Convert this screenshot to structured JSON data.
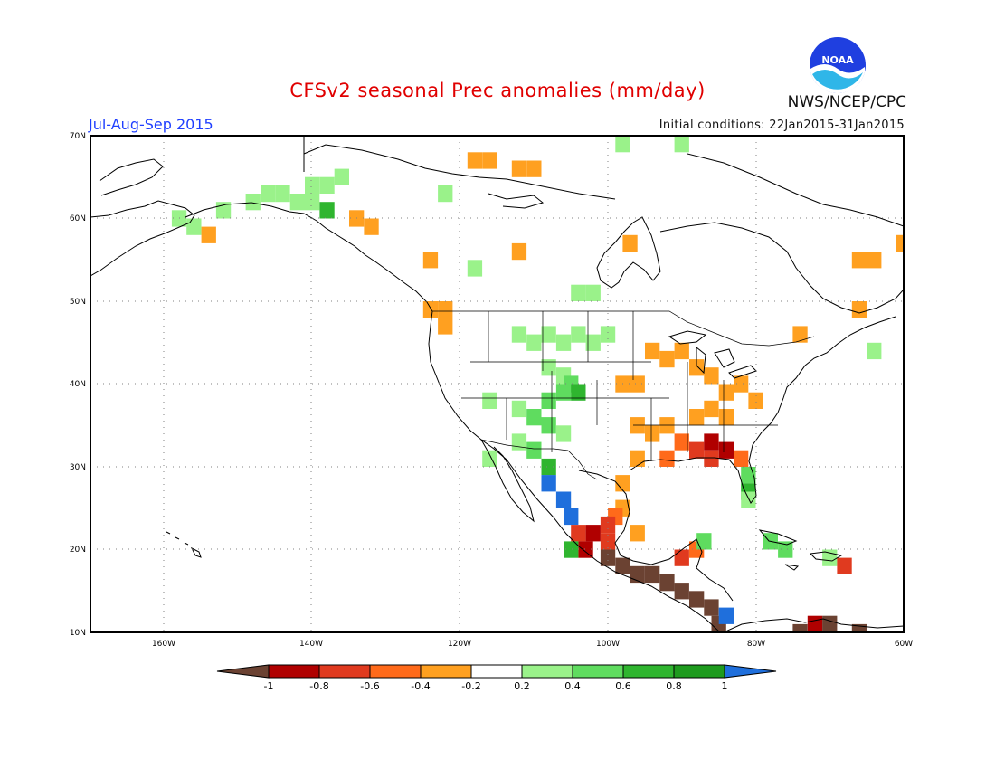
{
  "title": "CFSv2 seasonal Prec anomalies (mm/day)",
  "season": "Jul-Aug-Sep 2015",
  "initial_conditions": "Initial conditions: 22Jan2015-31Jan2015",
  "org": "NWS/NCEP/CPC",
  "logo_text": "NOAA",
  "lat_labels": [
    "70N",
    "60N",
    "50N",
    "40N",
    "30N",
    "20N",
    "10N"
  ],
  "lon_labels": [
    "160W",
    "140W",
    "120W",
    "100W",
    "80W",
    "60W"
  ],
  "legend": {
    "ticks": [
      "-1",
      "-0.8",
      "-0.6",
      "-0.4",
      "-0.2",
      "0.2",
      "0.4",
      "0.6",
      "0.8",
      "1"
    ],
    "colors": [
      "#6b4232",
      "#b00000",
      "#e03a1f",
      "#ff6a1a",
      "#ffa020",
      "#ffffff",
      "#9af28a",
      "#5fdc5f",
      "#2fb52f",
      "#1e9b1e",
      "#1f6fdc"
    ]
  },
  "colors": {
    "brown": "#6b4232",
    "darkred": "#b00000",
    "red": "#e03a1f",
    "orangered": "#ff6a1a",
    "orange": "#ffa020",
    "lightgreen": "#9af28a",
    "green": "#5fdc5f",
    "midgreen": "#2fb52f",
    "darkgreen": "#1e9b1e",
    "blue": "#1f6fdc"
  },
  "anomaly_cells": [
    {
      "c": "lightgreen",
      "lon": -152,
      "lat": 61
    },
    {
      "c": "lightgreen",
      "lon": -148,
      "lat": 62
    },
    {
      "c": "lightgreen",
      "lon": -146,
      "lat": 63
    },
    {
      "c": "lightgreen",
      "lon": -144,
      "lat": 63
    },
    {
      "c": "lightgreen",
      "lon": -142,
      "lat": 62
    },
    {
      "c": "lightgreen",
      "lon": -140,
      "lat": 62
    },
    {
      "c": "lightgreen",
      "lon": -138,
      "lat": 64
    },
    {
      "c": "lightgreen",
      "lon": -136,
      "lat": 65
    },
    {
      "c": "lightgreen",
      "lon": -140,
      "lat": 64
    },
    {
      "c": "midgreen",
      "lon": -138,
      "lat": 61
    },
    {
      "c": "lightgreen",
      "lon": -158,
      "lat": 60
    },
    {
      "c": "lightgreen",
      "lon": -156,
      "lat": 59
    },
    {
      "c": "orange",
      "lon": -134,
      "lat": 60
    },
    {
      "c": "orange",
      "lon": -132,
      "lat": 59
    },
    {
      "c": "orange",
      "lon": -154,
      "lat": 58
    },
    {
      "c": "orange",
      "lon": -118,
      "lat": 67
    },
    {
      "c": "orange",
      "lon": -116,
      "lat": 67
    },
    {
      "c": "orange",
      "lon": -112,
      "lat": 66
    },
    {
      "c": "orange",
      "lon": -110,
      "lat": 66
    },
    {
      "c": "lightgreen",
      "lon": -122,
      "lat": 63
    },
    {
      "c": "orange",
      "lon": -124,
      "lat": 55
    },
    {
      "c": "lightgreen",
      "lon": -118,
      "lat": 54
    },
    {
      "c": "lightgreen",
      "lon": -104,
      "lat": 51
    },
    {
      "c": "lightgreen",
      "lon": -102,
      "lat": 51
    },
    {
      "c": "orange",
      "lon": -112,
      "lat": 56
    },
    {
      "c": "lightgreen",
      "lon": -98,
      "lat": 69
    },
    {
      "c": "lightgreen",
      "lon": -90,
      "lat": 69
    },
    {
      "c": "orange",
      "lon": -124,
      "lat": 49
    },
    {
      "c": "orange",
      "lon": -122,
      "lat": 49
    },
    {
      "c": "orange",
      "lon": -122,
      "lat": 47
    },
    {
      "c": "orange",
      "lon": -97,
      "lat": 57
    },
    {
      "c": "orange",
      "lon": -66,
      "lat": 55
    },
    {
      "c": "orange",
      "lon": -64,
      "lat": 55
    },
    {
      "c": "orange",
      "lon": -60,
      "lat": 57
    },
    {
      "c": "lightgreen",
      "lon": -112,
      "lat": 46
    },
    {
      "c": "lightgreen",
      "lon": -110,
      "lat": 45
    },
    {
      "c": "lightgreen",
      "lon": -108,
      "lat": 46
    },
    {
      "c": "lightgreen",
      "lon": -106,
      "lat": 45
    },
    {
      "c": "lightgreen",
      "lon": -104,
      "lat": 46
    },
    {
      "c": "lightgreen",
      "lon": -102,
      "lat": 45
    },
    {
      "c": "lightgreen",
      "lon": -100,
      "lat": 46
    },
    {
      "c": "lightgreen",
      "lon": -108,
      "lat": 42
    },
    {
      "c": "lightgreen",
      "lon": -106,
      "lat": 41
    },
    {
      "c": "green",
      "lon": -105,
      "lat": 40
    },
    {
      "c": "green",
      "lon": -106,
      "lat": 39
    },
    {
      "c": "midgreen",
      "lon": -104,
      "lat": 39
    },
    {
      "c": "green",
      "lon": -108,
      "lat": 38
    },
    {
      "c": "lightgreen",
      "lon": -112,
      "lat": 37
    },
    {
      "c": "green",
      "lon": -110,
      "lat": 36
    },
    {
      "c": "green",
      "lon": -108,
      "lat": 35
    },
    {
      "c": "lightgreen",
      "lon": -106,
      "lat": 34
    },
    {
      "c": "lightgreen",
      "lon": -112,
      "lat": 33
    },
    {
      "c": "green",
      "lon": -110,
      "lat": 32
    },
    {
      "c": "midgreen",
      "lon": -108,
      "lat": 30
    },
    {
      "c": "blue",
      "lon": -108,
      "lat": 28
    },
    {
      "c": "blue",
      "lon": -106,
      "lat": 26
    },
    {
      "c": "blue",
      "lon": -105,
      "lat": 24
    },
    {
      "c": "lightgreen",
      "lon": -116,
      "lat": 31
    },
    {
      "c": "lightgreen",
      "lon": -116,
      "lat": 38
    },
    {
      "c": "orange",
      "lon": -94,
      "lat": 44
    },
    {
      "c": "orange",
      "lon": -92,
      "lat": 43
    },
    {
      "c": "orange",
      "lon": -90,
      "lat": 44
    },
    {
      "c": "orange",
      "lon": -88,
      "lat": 42
    },
    {
      "c": "orange",
      "lon": -86,
      "lat": 41
    },
    {
      "c": "orange",
      "lon": -84,
      "lat": 39
    },
    {
      "c": "orange",
      "lon": -82,
      "lat": 40
    },
    {
      "c": "orange",
      "lon": -80,
      "lat": 38
    },
    {
      "c": "orange",
      "lon": -96,
      "lat": 40
    },
    {
      "c": "orange",
      "lon": -98,
      "lat": 40
    },
    {
      "c": "orange",
      "lon": -96,
      "lat": 35
    },
    {
      "c": "orange",
      "lon": -94,
      "lat": 34
    },
    {
      "c": "orange",
      "lon": -92,
      "lat": 35
    },
    {
      "c": "orange",
      "lon": -88,
      "lat": 36
    },
    {
      "c": "orange",
      "lon": -86,
      "lat": 37
    },
    {
      "c": "orange",
      "lon": -84,
      "lat": 36
    },
    {
      "c": "orange",
      "lon": -96,
      "lat": 31
    },
    {
      "c": "orange",
      "lon": -98,
      "lat": 28
    },
    {
      "c": "orangered",
      "lon": -92,
      "lat": 31
    },
    {
      "c": "orangered",
      "lon": -90,
      "lat": 33
    },
    {
      "c": "red",
      "lon": -88,
      "lat": 32
    },
    {
      "c": "darkred",
      "lon": -86,
      "lat": 33
    },
    {
      "c": "darkred",
      "lon": -84,
      "lat": 32
    },
    {
      "c": "red",
      "lon": -86,
      "lat": 31
    },
    {
      "c": "orangered",
      "lon": -82,
      "lat": 31
    },
    {
      "c": "green",
      "lon": -81,
      "lat": 29
    },
    {
      "c": "midgreen",
      "lon": -81,
      "lat": 27
    },
    {
      "c": "lightgreen",
      "lon": -81,
      "lat": 26
    },
    {
      "c": "orange",
      "lon": -98,
      "lat": 25
    },
    {
      "c": "orangered",
      "lon": -99,
      "lat": 24
    },
    {
      "c": "red",
      "lon": -100,
      "lat": 23
    },
    {
      "c": "darkred",
      "lon": -102,
      "lat": 22
    },
    {
      "c": "red",
      "lon": -104,
      "lat": 22
    },
    {
      "c": "orange",
      "lon": -96,
      "lat": 22
    },
    {
      "c": "red",
      "lon": -100,
      "lat": 21
    },
    {
      "c": "darkred",
      "lon": -103,
      "lat": 20
    },
    {
      "c": "brown",
      "lon": -100,
      "lat": 19
    },
    {
      "c": "brown",
      "lon": -98,
      "lat": 18
    },
    {
      "c": "brown",
      "lon": -96,
      "lat": 17
    },
    {
      "c": "brown",
      "lon": -94,
      "lat": 17
    },
    {
      "c": "brown",
      "lon": -92,
      "lat": 16
    },
    {
      "c": "brown",
      "lon": -90,
      "lat": 15
    },
    {
      "c": "brown",
      "lon": -88,
      "lat": 14
    },
    {
      "c": "brown",
      "lon": -86,
      "lat": 13
    },
    {
      "c": "brown",
      "lon": -85,
      "lat": 11
    },
    {
      "c": "red",
      "lon": -90,
      "lat": 19
    },
    {
      "c": "orangered",
      "lon": -88,
      "lat": 20
    },
    {
      "c": "green",
      "lon": -87,
      "lat": 21
    },
    {
      "c": "blue",
      "lon": -84,
      "lat": 12
    },
    {
      "c": "midgreen",
      "lon": -105,
      "lat": 20
    },
    {
      "c": "green",
      "lon": -78,
      "lat": 21
    },
    {
      "c": "green",
      "lon": -76,
      "lat": 20
    },
    {
      "c": "lightgreen",
      "lon": -70,
      "lat": 19
    },
    {
      "c": "red",
      "lon": -68,
      "lat": 18
    },
    {
      "c": "brown",
      "lon": -74,
      "lat": 10
    },
    {
      "c": "brown",
      "lon": -70,
      "lat": 11
    },
    {
      "c": "darkred",
      "lon": -72,
      "lat": 11
    },
    {
      "c": "brown",
      "lon": -66,
      "lat": 10
    },
    {
      "c": "orange",
      "lon": -74,
      "lat": 46
    },
    {
      "c": "lightgreen",
      "lon": -64,
      "lat": 44
    },
    {
      "c": "orange",
      "lon": -66,
      "lat": 49
    }
  ]
}
